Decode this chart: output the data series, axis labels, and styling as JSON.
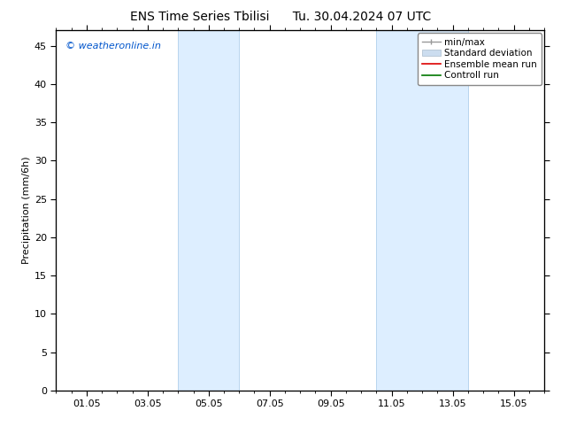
{
  "title_left": "ENS Time Series Tbilisi",
  "title_right": "Tu. 30.04.2024 07 UTC",
  "ylabel": "Precipitation (mm/6h)",
  "watermark": "© weatheronline.in",
  "watermark_color": "#0055cc",
  "xmin": 0,
  "xmax": 16,
  "ymin": 0,
  "ymax": 47,
  "yticks": [
    0,
    5,
    10,
    15,
    20,
    25,
    30,
    35,
    40,
    45
  ],
  "xtick_labels": [
    "01.05",
    "03.05",
    "05.05",
    "07.05",
    "09.05",
    "11.05",
    "13.05",
    "15.05"
  ],
  "xtick_positions": [
    1,
    3,
    5,
    7,
    9,
    11,
    13,
    15
  ],
  "shaded_regions": [
    {
      "xstart": 4.0,
      "xend": 6.0
    },
    {
      "xstart": 10.5,
      "xend": 13.5
    }
  ],
  "shaded_color": "#ddeeff",
  "shaded_edge_color": "#b8d4ee",
  "background_color": "#ffffff",
  "minor_xtick_step": 0.5,
  "spine_color": "#000000",
  "tick_color": "#000000",
  "font_size_title": 10,
  "font_size_axis": 8,
  "font_size_legend": 7.5,
  "font_size_watermark": 8
}
